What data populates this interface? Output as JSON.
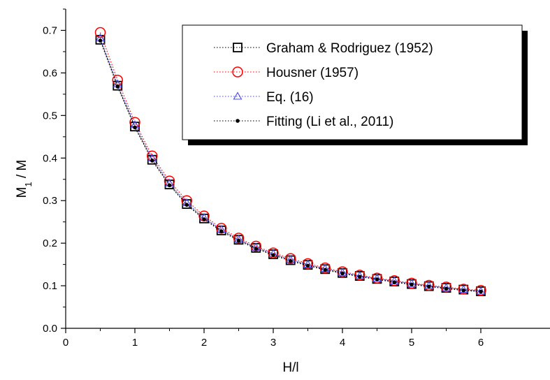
{
  "chart_data": {
    "type": "line",
    "xlabel": "H/l",
    "ylabel_main": "M",
    "ylabel_sub": "1",
    "ylabel_rest": " / M",
    "xlim": [
      0,
      7
    ],
    "ylim": [
      0,
      0.75
    ],
    "xticks": [
      0,
      1,
      2,
      3,
      4,
      5,
      6
    ],
    "xtick_labels": [
      "0",
      "1",
      "2",
      "3",
      "4",
      "5",
      "6"
    ],
    "yticks": [
      0.0,
      0.1,
      0.2,
      0.3,
      0.4,
      0.5,
      0.6,
      0.7
    ],
    "ytick_labels": [
      "0.0",
      "0.1",
      "0.2",
      "0.3",
      "0.4",
      "0.5",
      "0.6",
      "0.7"
    ],
    "grid": false,
    "legend_position": "top-right",
    "x": [
      0.5,
      0.75,
      1.0,
      1.25,
      1.5,
      1.75,
      2.0,
      2.25,
      2.5,
      2.75,
      3.0,
      3.25,
      3.5,
      3.75,
      4.0,
      4.25,
      4.5,
      4.75,
      5.0,
      5.25,
      5.5,
      5.75,
      6.0
    ],
    "series": [
      {
        "name": "Graham & Rodriguez (1952)",
        "marker": "square",
        "color": "#000000",
        "values": [
          0.678,
          0.57,
          0.474,
          0.396,
          0.338,
          0.292,
          0.258,
          0.23,
          0.208,
          0.189,
          0.174,
          0.16,
          0.149,
          0.139,
          0.13,
          0.123,
          0.116,
          0.11,
          0.104,
          0.099,
          0.095,
          0.091,
          0.087
        ]
      },
      {
        "name": "Housner (1957)",
        "marker": "circle",
        "color": "#ff0000",
        "values": [
          0.695,
          0.583,
          0.484,
          0.405,
          0.346,
          0.3,
          0.264,
          0.235,
          0.212,
          0.193,
          0.177,
          0.164,
          0.152,
          0.142,
          0.133,
          0.125,
          0.118,
          0.112,
          0.106,
          0.101,
          0.097,
          0.092,
          0.089
        ]
      },
      {
        "name": "Eq. (16)",
        "marker": "triangle",
        "color": "#4a4af0",
        "values": [
          0.682,
          0.574,
          0.478,
          0.4,
          0.341,
          0.295,
          0.26,
          0.232,
          0.209,
          0.19,
          0.175,
          0.161,
          0.15,
          0.14,
          0.131,
          0.123,
          0.117,
          0.111,
          0.105,
          0.1,
          0.095,
          0.091,
          0.087
        ]
      },
      {
        "name": "Fitting (Li et al., 2011)",
        "marker": "dot",
        "color": "#000000",
        "values": [
          0.676,
          0.568,
          0.472,
          0.394,
          0.336,
          0.29,
          0.256,
          0.228,
          0.206,
          0.187,
          0.172,
          0.158,
          0.147,
          0.137,
          0.129,
          0.121,
          0.115,
          0.108,
          0.103,
          0.098,
          0.093,
          0.089,
          0.086
        ]
      }
    ]
  }
}
